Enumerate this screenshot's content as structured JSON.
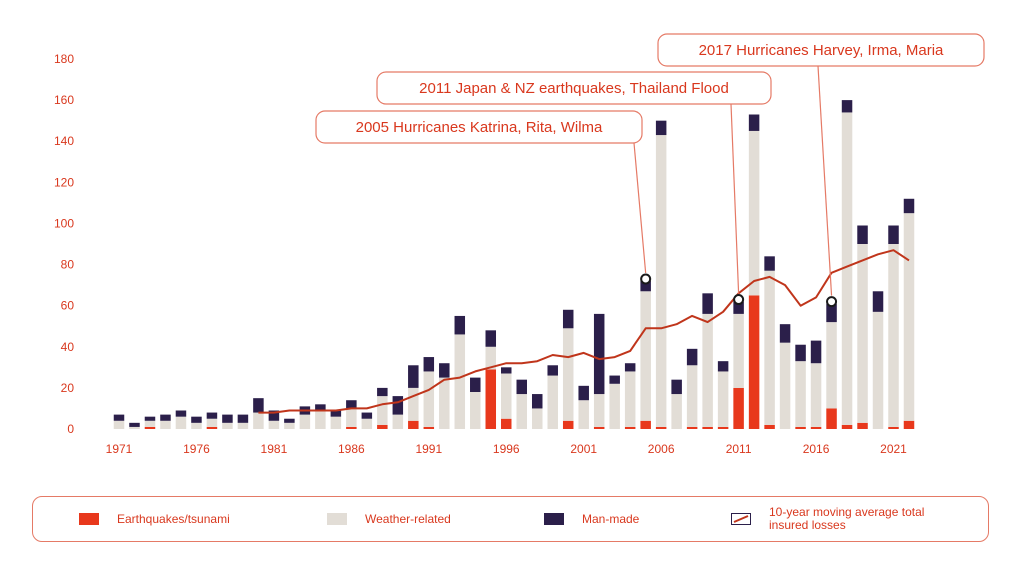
{
  "colors": {
    "earthquake": "#e8381c",
    "weather": "#e2ddd6",
    "manmade": "#2b1f4a",
    "average_line": "#c0351b",
    "text": "#d9381e",
    "border": "#e57a66"
  },
  "chart_data": {
    "type": "bar",
    "stacked": true,
    "years": [
      1971,
      1972,
      1973,
      1974,
      1975,
      1976,
      1977,
      1978,
      1979,
      1980,
      1981,
      1982,
      1983,
      1984,
      1985,
      1986,
      1987,
      1988,
      1989,
      1990,
      1991,
      1992,
      1993,
      1994,
      1995,
      1996,
      1997,
      1998,
      1999,
      2000,
      2001,
      2002,
      2003,
      2004,
      2005,
      2006,
      2007,
      2008,
      2009,
      2010,
      2011,
      2012,
      2013,
      2014,
      2015,
      2016,
      2017,
      2018,
      2019,
      2020,
      2021,
      2022
    ],
    "x_tick_labels": [
      "1971",
      "1976",
      "1981",
      "1986",
      "1991",
      "1996",
      "2001",
      "2006",
      "2011",
      "2016",
      "2021"
    ],
    "y_tick_labels": [
      "0",
      "20",
      "40",
      "60",
      "80",
      "100",
      "120",
      "140",
      "160",
      "180"
    ],
    "ylim": [
      0,
      180
    ],
    "series": [
      {
        "name": "Earthquakes/tsunami",
        "values": [
          0,
          0,
          1,
          0,
          0,
          0,
          1,
          0,
          0,
          0,
          0,
          0,
          0,
          0,
          0,
          1,
          0,
          2,
          0,
          4,
          1,
          0,
          0,
          0,
          29,
          5,
          0,
          0,
          0,
          4,
          0,
          1,
          0,
          1,
          4,
          1,
          0,
          1,
          1,
          1,
          20,
          65,
          2,
          0,
          1,
          1,
          10,
          2,
          3,
          0,
          1,
          4
        ]
      },
      {
        "name": "Weather-related",
        "values": [
          4,
          1,
          3,
          4,
          6,
          3,
          4,
          3,
          3,
          8,
          4,
          3,
          7,
          9,
          6,
          9,
          5,
          14,
          7,
          16,
          27,
          25,
          46,
          18,
          11,
          22,
          17,
          10,
          26,
          45,
          14,
          16,
          22,
          27,
          63,
          142,
          17,
          30,
          55,
          27,
          36,
          80,
          75,
          42,
          32,
          31,
          42,
          152,
          87,
          57,
          89,
          101
        ]
      },
      {
        "name": "Man-made",
        "values": [
          3,
          2,
          2,
          3,
          3,
          3,
          3,
          4,
          4,
          7,
          5,
          2,
          4,
          3,
          3,
          4,
          3,
          4,
          9,
          11,
          7,
          7,
          9,
          7,
          8,
          3,
          7,
          7,
          5,
          9,
          7,
          39,
          4,
          4,
          5,
          7,
          7,
          8,
          10,
          5,
          6,
          8,
          7,
          9,
          8,
          11,
          9,
          6,
          9,
          10,
          9,
          7
        ]
      },
      {
        "name": "10-year moving average total insured losses",
        "type": "line",
        "values": [
          null,
          null,
          null,
          null,
          null,
          null,
          null,
          null,
          null,
          8,
          8,
          9,
          9,
          9,
          9,
          10,
          10,
          12,
          13,
          16,
          19,
          24,
          25,
          28,
          30,
          32,
          32,
          33,
          36,
          35,
          37,
          34,
          35,
          38,
          49,
          49,
          51,
          55,
          52,
          57,
          66,
          72,
          74,
          70,
          60,
          64,
          76,
          79,
          82,
          85,
          87,
          82
        ]
      }
    ],
    "circle_markers": [
      2005,
      2011,
      2017
    ],
    "annotations": [
      {
        "text": "2005 Hurricanes Katrina, Rita, Wilma",
        "year": 2005
      },
      {
        "text": "2011 Japan & NZ earthquakes, Thailand Flood",
        "year": 2011
      },
      {
        "text": "2017 Hurricanes Harvey, Irma, Maria",
        "year": 2017
      }
    ]
  },
  "legend": {
    "earthquake_label": "Earthquakes/tsunami",
    "weather_label": "Weather-related",
    "manmade_label": "Man-made",
    "average_label_line1": "10-year moving average total",
    "average_label_line2": "insured losses"
  }
}
